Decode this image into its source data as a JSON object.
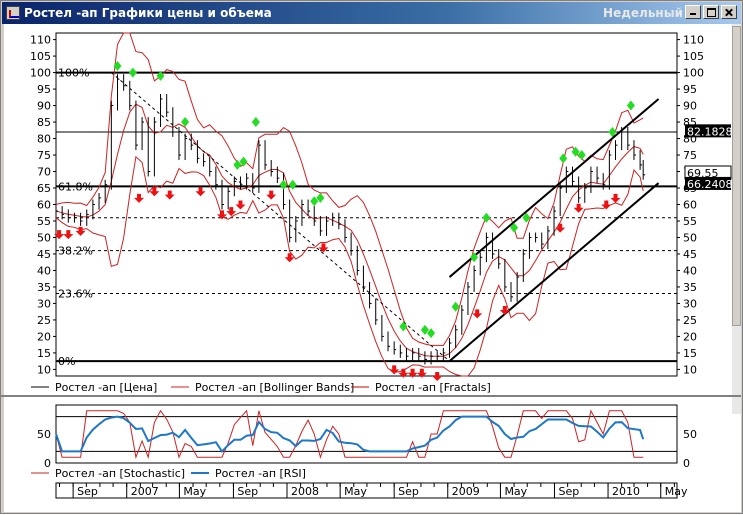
{
  "window": {
    "title": "Ростел -ап Графики цены и объема",
    "period": "Недельный"
  },
  "colors": {
    "price": "#000000",
    "bollinger": "#cc2222",
    "fractal_up": "#22dd22",
    "fractal_down": "#ee1111",
    "rsi": "#1e78c8",
    "stochastic": "#cc2222"
  },
  "chart_data": [
    {
      "type": "line",
      "name": "main-price-chart",
      "ylim": [
        8,
        112
      ],
      "y_ticks": [
        10,
        15,
        20,
        25,
        30,
        35,
        40,
        45,
        50,
        55,
        60,
        65,
        70,
        75,
        80,
        85,
        90,
        95,
        100,
        105,
        110
      ],
      "x_range": [
        "2006-07-24",
        "2010-06-07"
      ],
      "price_series": [
        [
          "2006-07-24",
          58
        ],
        [
          "2006-08-07",
          57
        ],
        [
          "2006-08-21",
          56
        ],
        [
          "2006-09-04",
          56
        ],
        [
          "2006-09-18",
          55
        ],
        [
          "2006-10-02",
          57
        ],
        [
          "2006-10-16",
          60
        ],
        [
          "2006-10-30",
          62
        ],
        [
          "2006-11-13",
          66
        ],
        [
          "2006-11-27",
          90
        ],
        [
          "2006-12-11",
          98
        ],
        [
          "2006-12-25",
          96
        ],
        [
          "2007-01-08",
          90
        ],
        [
          "2007-01-22",
          78
        ],
        [
          "2007-02-05",
          85
        ],
        [
          "2007-02-19",
          70
        ],
        [
          "2007-03-05",
          85
        ],
        [
          "2007-03-19",
          92
        ],
        [
          "2007-04-02",
          88
        ],
        [
          "2007-04-16",
          82
        ],
        [
          "2007-04-30",
          75
        ],
        [
          "2007-05-14",
          80
        ],
        [
          "2007-05-28",
          78
        ],
        [
          "2007-06-11",
          74
        ],
        [
          "2007-06-25",
          73
        ],
        [
          "2007-07-09",
          70
        ],
        [
          "2007-07-23",
          66
        ],
        [
          "2007-08-06",
          60
        ],
        [
          "2007-08-20",
          64
        ],
        [
          "2007-09-03",
          67
        ],
        [
          "2007-09-17",
          66
        ],
        [
          "2007-10-01",
          68
        ],
        [
          "2007-10-15",
          65
        ],
        [
          "2007-10-29",
          78
        ],
        [
          "2007-11-12",
          72
        ],
        [
          "2007-11-26",
          70
        ],
        [
          "2007-12-10",
          68
        ],
        [
          "2007-12-24",
          60
        ],
        [
          "2008-01-07",
          50
        ],
        [
          "2008-01-21",
          55
        ],
        [
          "2008-02-04",
          60
        ],
        [
          "2008-02-18",
          58
        ],
        [
          "2008-03-03",
          55
        ],
        [
          "2008-03-17",
          52
        ],
        [
          "2008-03-31",
          55
        ],
        [
          "2008-04-14",
          56
        ],
        [
          "2008-04-28",
          54
        ],
        [
          "2008-05-12",
          50
        ],
        [
          "2008-05-26",
          46
        ],
        [
          "2008-06-09",
          40
        ],
        [
          "2008-06-23",
          35
        ],
        [
          "2008-07-07",
          30
        ],
        [
          "2008-07-21",
          25
        ],
        [
          "2008-08-04",
          20
        ],
        [
          "2008-08-18",
          17
        ],
        [
          "2008-09-01",
          16
        ],
        [
          "2008-09-15",
          15
        ],
        [
          "2008-09-29",
          14
        ],
        [
          "2008-10-13",
          15
        ],
        [
          "2008-10-27",
          14
        ],
        [
          "2008-11-10",
          13
        ],
        [
          "2008-11-24",
          14
        ],
        [
          "2008-12-08",
          14
        ],
        [
          "2008-12-22",
          15
        ],
        [
          "2009-01-05",
          18
        ],
        [
          "2009-01-19",
          22
        ],
        [
          "2009-02-02",
          28
        ],
        [
          "2009-02-16",
          35
        ],
        [
          "2009-03-02",
          40
        ],
        [
          "2009-03-16",
          44
        ],
        [
          "2009-03-30",
          50
        ],
        [
          "2009-04-13",
          45
        ],
        [
          "2009-04-27",
          42
        ],
        [
          "2009-05-11",
          35
        ],
        [
          "2009-05-25",
          32
        ],
        [
          "2009-06-08",
          38
        ],
        [
          "2009-06-22",
          45
        ],
        [
          "2009-07-06",
          50
        ],
        [
          "2009-07-20",
          50
        ],
        [
          "2009-08-03",
          48
        ],
        [
          "2009-08-17",
          52
        ],
        [
          "2009-08-31",
          58
        ],
        [
          "2009-09-14",
          65
        ],
        [
          "2009-09-28",
          70
        ],
        [
          "2009-10-12",
          67
        ],
        [
          "2009-10-26",
          62
        ],
        [
          "2009-11-09",
          65
        ],
        [
          "2009-11-23",
          70
        ],
        [
          "2009-12-07",
          68
        ],
        [
          "2009-12-21",
          66
        ],
        [
          "2010-01-04",
          75
        ],
        [
          "2010-01-18",
          78
        ],
        [
          "2010-02-01",
          82
        ],
        [
          "2010-02-15",
          78
        ],
        [
          "2010-03-01",
          75
        ],
        [
          "2010-03-15",
          72
        ],
        [
          "2010-03-22",
          69
        ]
      ],
      "horizontal_levels": [
        {
          "label": "100%",
          "value": 100,
          "style": "solid-bold"
        },
        {
          "label": "",
          "value": 82,
          "style": "solid"
        },
        {
          "label": "61.8%",
          "value": 65.5,
          "style": "solid-bold"
        },
        {
          "label": "",
          "value": 56,
          "style": "dashed"
        },
        {
          "label": "38.2%",
          "value": 46,
          "style": "dashed"
        },
        {
          "label": "23.6%",
          "value": 33,
          "style": "dashed"
        },
        {
          "label": "0%",
          "value": 12.5,
          "style": "solid-bold"
        }
      ],
      "channel_lines": [
        {
          "from": [
            "2009-01-05",
            38
          ],
          "to": [
            "2010-04-26",
            92
          ]
        },
        {
          "from": [
            "2009-01-05",
            12.5
          ],
          "to": [
            "2010-04-26",
            66.5
          ]
        }
      ],
      "dashed_trend": {
        "from": [
          "2006-11-27",
          100
        ],
        "to": [
          "2009-01-05",
          12.5
        ]
      },
      "price_labels": [
        {
          "label": "82.1828",
          "value": 82.18,
          "style": "inverse"
        },
        {
          "label": "69.55",
          "value": 69.55,
          "style": "plain"
        },
        {
          "label": "66.2408",
          "value": 66.24,
          "style": "inverse"
        }
      ],
      "fractals_up": [
        [
          "2006-12-11",
          102
        ],
        [
          "2007-01-15",
          100
        ],
        [
          "2007-03-19",
          99
        ],
        [
          "2007-05-14",
          85
        ],
        [
          "2007-09-10",
          72
        ],
        [
          "2007-09-24",
          73
        ],
        [
          "2007-10-22",
          85
        ],
        [
          "2007-12-24",
          66
        ],
        [
          "2008-01-14",
          66
        ],
        [
          "2008-03-03",
          61
        ],
        [
          "2008-03-17",
          62
        ],
        [
          "2008-09-22",
          23
        ],
        [
          "2008-11-10",
          22
        ],
        [
          "2008-11-24",
          21
        ],
        [
          "2009-01-19",
          29
        ],
        [
          "2009-03-02",
          44
        ],
        [
          "2009-03-30",
          56
        ],
        [
          "2009-06-01",
          53
        ],
        [
          "2009-06-29",
          56
        ],
        [
          "2009-09-21",
          74
        ],
        [
          "2009-10-19",
          76
        ],
        [
          "2009-11-02",
          75
        ],
        [
          "2010-01-11",
          82
        ],
        [
          "2010-02-22",
          90
        ]
      ],
      "fractals_down": [
        [
          "2006-07-31",
          51
        ],
        [
          "2006-08-21",
          51
        ],
        [
          "2006-09-18",
          52
        ],
        [
          "2007-01-29",
          62
        ],
        [
          "2007-03-05",
          64
        ],
        [
          "2007-04-09",
          63
        ],
        [
          "2007-06-18",
          64
        ],
        [
          "2007-08-06",
          57
        ],
        [
          "2007-08-27",
          58
        ],
        [
          "2007-09-17",
          60
        ],
        [
          "2007-11-26",
          63
        ],
        [
          "2008-01-07",
          44
        ],
        [
          "2008-03-24",
          47
        ],
        [
          "2008-09-01",
          10
        ],
        [
          "2008-09-22",
          9
        ],
        [
          "2008-10-13",
          9
        ],
        [
          "2008-11-03",
          9
        ],
        [
          "2008-12-08",
          8
        ],
        [
          "2009-03-09",
          27
        ],
        [
          "2009-05-11",
          28
        ],
        [
          "2009-09-14",
          53
        ],
        [
          "2009-10-26",
          59
        ],
        [
          "2009-12-28",
          60
        ],
        [
          "2010-01-18",
          62
        ]
      ],
      "legend": [
        {
          "label": "Ростел -ап [Цена]",
          "series": "price"
        },
        {
          "label": "Ростел -ап [Bollinger Bands]",
          "series": "bollinger"
        },
        {
          "label": "Ростел -ап [Fractals]",
          "series": "fractals"
        }
      ]
    },
    {
      "type": "line",
      "name": "oscillator-chart",
      "ylim": [
        0,
        100
      ],
      "y_ticks": [
        0,
        50
      ],
      "reference_lines": [
        80,
        20
      ],
      "legend": [
        {
          "label": "Ростел -ап [Stochastic]",
          "series": "stochastic"
        },
        {
          "label": "Ростел -ап [RSI]",
          "series": "rsi"
        }
      ]
    }
  ],
  "time_axis": {
    "ticks": [
      {
        "label": "Sep",
        "date": "2006-09-01"
      },
      {
        "label": "2007",
        "date": "2007-01-01"
      },
      {
        "label": "May",
        "date": "2007-05-01"
      },
      {
        "label": "Sep",
        "date": "2007-09-01"
      },
      {
        "label": "2008",
        "date": "2008-01-01"
      },
      {
        "label": "May",
        "date": "2008-05-01"
      },
      {
        "label": "Sep",
        "date": "2008-09-01"
      },
      {
        "label": "2009",
        "date": "2009-01-01"
      },
      {
        "label": "May",
        "date": "2009-05-01"
      },
      {
        "label": "Sep",
        "date": "2009-09-01"
      },
      {
        "label": "2010",
        "date": "2010-01-01"
      },
      {
        "label": "May",
        "date": "2010-05-01"
      }
    ]
  }
}
